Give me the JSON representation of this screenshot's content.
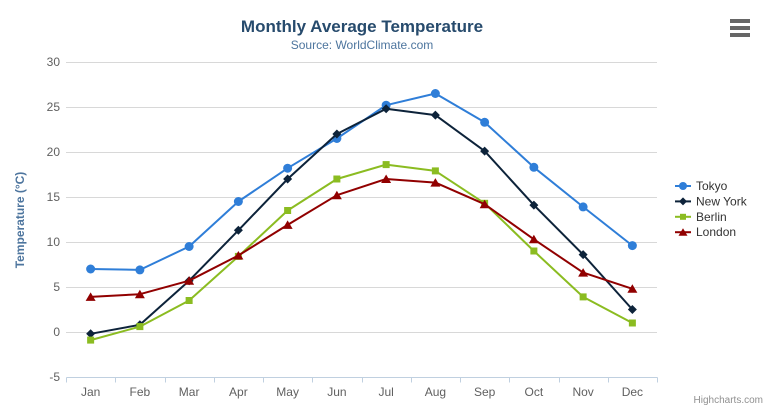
{
  "credits": "Highcharts.com",
  "context_menu": {
    "icon": "hamburger-menu-icon"
  },
  "theme": {
    "background": "#ffffff",
    "title_color": "#274b6d",
    "subtitle_color": "#4d759e",
    "axis_label_color": "#606060",
    "axis_title_color": "#4d759e",
    "grid_color": "#d8d8d8",
    "axis_line_color": "#c0d0e0",
    "legend_text_color": "#333333",
    "credits_color": "#909090",
    "menu_icon_color": "#666666"
  },
  "chart_data": {
    "type": "line",
    "title": "Monthly Average Temperature",
    "subtitle": "Source: WorldClimate.com",
    "xlabel": "",
    "ylabel": "Temperature (°C)",
    "ylim": [
      -5,
      30
    ],
    "ytick_step": 5,
    "grid": true,
    "legend_position": "right",
    "categories": [
      "Jan",
      "Feb",
      "Mar",
      "Apr",
      "May",
      "Jun",
      "Jul",
      "Aug",
      "Sep",
      "Oct",
      "Nov",
      "Dec"
    ],
    "series": [
      {
        "name": "Tokyo",
        "color": "#2f7ed8",
        "marker": "circle",
        "values": [
          7.0,
          6.9,
          9.5,
          14.5,
          18.2,
          21.5,
          25.2,
          26.5,
          23.3,
          18.3,
          13.9,
          9.6
        ]
      },
      {
        "name": "New York",
        "color": "#0d233a",
        "marker": "diamond",
        "values": [
          -0.2,
          0.8,
          5.7,
          11.3,
          17.0,
          22.0,
          24.8,
          24.1,
          20.1,
          14.1,
          8.6,
          2.5
        ]
      },
      {
        "name": "Berlin",
        "color": "#8bbc21",
        "marker": "square",
        "values": [
          -0.9,
          0.6,
          3.5,
          8.4,
          13.5,
          17.0,
          18.6,
          17.9,
          14.3,
          9.0,
          3.9,
          1.0
        ]
      },
      {
        "name": "London",
        "color": "#910000",
        "marker": "triangle",
        "values": [
          3.9,
          4.2,
          5.7,
          8.5,
          11.9,
          15.2,
          17.0,
          16.6,
          14.2,
          10.3,
          6.6,
          4.8
        ]
      }
    ]
  }
}
